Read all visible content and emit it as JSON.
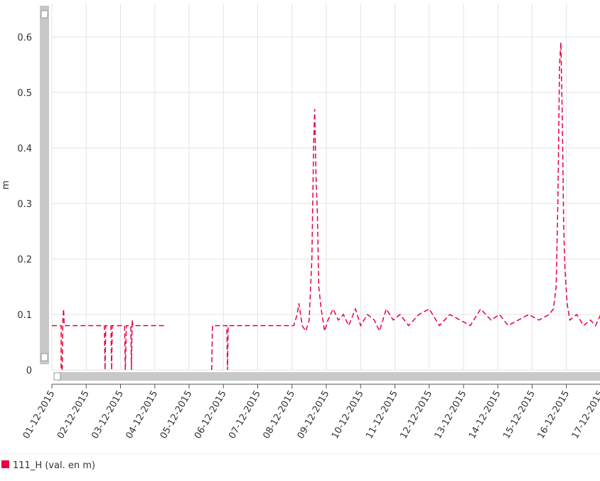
{
  "chart_data": {
    "type": "line",
    "y_label": "m",
    "x": [
      0,
      0.27,
      0.27,
      0.3,
      0.32,
      0.34,
      0.36,
      1.53,
      1.55,
      1.57,
      1.72,
      1.74,
      1.76,
      2.12,
      2.14,
      2.17,
      2.3,
      2.32,
      2.34,
      2.36,
      3.33,
      4.0,
      4.66,
      4.68,
      5.1,
      5.12,
      5.14,
      7.05,
      7.15,
      7.2,
      7.3,
      7.4,
      7.5,
      7.58,
      7.63,
      7.66,
      7.7,
      7.74,
      7.78,
      7.85,
      7.95,
      8.05,
      8.2,
      8.35,
      8.5,
      8.65,
      8.85,
      9.0,
      9.2,
      9.4,
      9.55,
      9.75,
      9.95,
      10.15,
      10.4,
      10.7,
      11.0,
      11.3,
      11.6,
      11.9,
      12.2,
      12.5,
      12.8,
      13.05,
      13.3,
      13.6,
      13.9,
      14.2,
      14.5,
      14.62,
      14.7,
      14.75,
      14.8,
      14.84,
      14.88,
      14.92,
      14.96,
      15.02,
      15.1,
      15.3,
      15.5,
      15.7,
      15.85,
      16.0
    ],
    "series": [
      {
        "name": "111_H (val. en m)",
        "color": "#e8003f",
        "values": [
          0.08,
          0.08,
          0,
          0,
          0.09,
          0.11,
          0.08,
          0.08,
          0,
          0.08,
          0.08,
          0,
          0.08,
          0.08,
          0,
          0.08,
          0.08,
          0,
          0.09,
          0.08,
          0.08,
          null,
          0,
          0.08,
          0.08,
          0,
          0.08,
          0.08,
          0.1,
          0.12,
          0.08,
          0.07,
          0.09,
          0.2,
          0.4,
          0.47,
          0.35,
          0.28,
          0.15,
          0.11,
          0.07,
          0.09,
          0.11,
          0.09,
          0.1,
          0.08,
          0.11,
          0.08,
          0.1,
          0.09,
          0.07,
          0.11,
          0.09,
          0.1,
          0.08,
          0.1,
          0.11,
          0.08,
          0.1,
          0.09,
          0.08,
          0.11,
          0.09,
          0.1,
          0.08,
          0.09,
          0.1,
          0.09,
          0.1,
          0.11,
          0.15,
          0.3,
          0.55,
          0.59,
          0.45,
          0.26,
          0.18,
          0.12,
          0.09,
          0.1,
          0.08,
          0.09,
          0.08,
          0.1
        ]
      }
    ],
    "xlim": [
      0,
      16
    ],
    "ylim": [
      0,
      0.66
    ],
    "xticks": [
      {
        "value": 0,
        "label": "01-12-2015"
      },
      {
        "value": 1,
        "label": "02-12-2015"
      },
      {
        "value": 2,
        "label": "03-12-2015"
      },
      {
        "value": 3,
        "label": "04-12-2015"
      },
      {
        "value": 4,
        "label": "05-12-2015"
      },
      {
        "value": 5,
        "label": "06-12-2015"
      },
      {
        "value": 6,
        "label": "07-12-2015"
      },
      {
        "value": 7,
        "label": "08-12-2015"
      },
      {
        "value": 8,
        "label": "09-12-2015"
      },
      {
        "value": 9,
        "label": "10-12-2015"
      },
      {
        "value": 10,
        "label": "11-12-2015"
      },
      {
        "value": 11,
        "label": "12-12-2015"
      },
      {
        "value": 12,
        "label": "13-12-2015"
      },
      {
        "value": 13,
        "label": "14-12-2015"
      },
      {
        "value": 14,
        "label": "15-12-2015"
      },
      {
        "value": 15,
        "label": "16-12-2015"
      },
      {
        "value": 16,
        "label": "17-12-2015"
      }
    ],
    "yticks": [
      0,
      0.1,
      0.2,
      0.3,
      0.4,
      0.5,
      0.6
    ],
    "grid": true,
    "line_style": "dashed"
  }
}
